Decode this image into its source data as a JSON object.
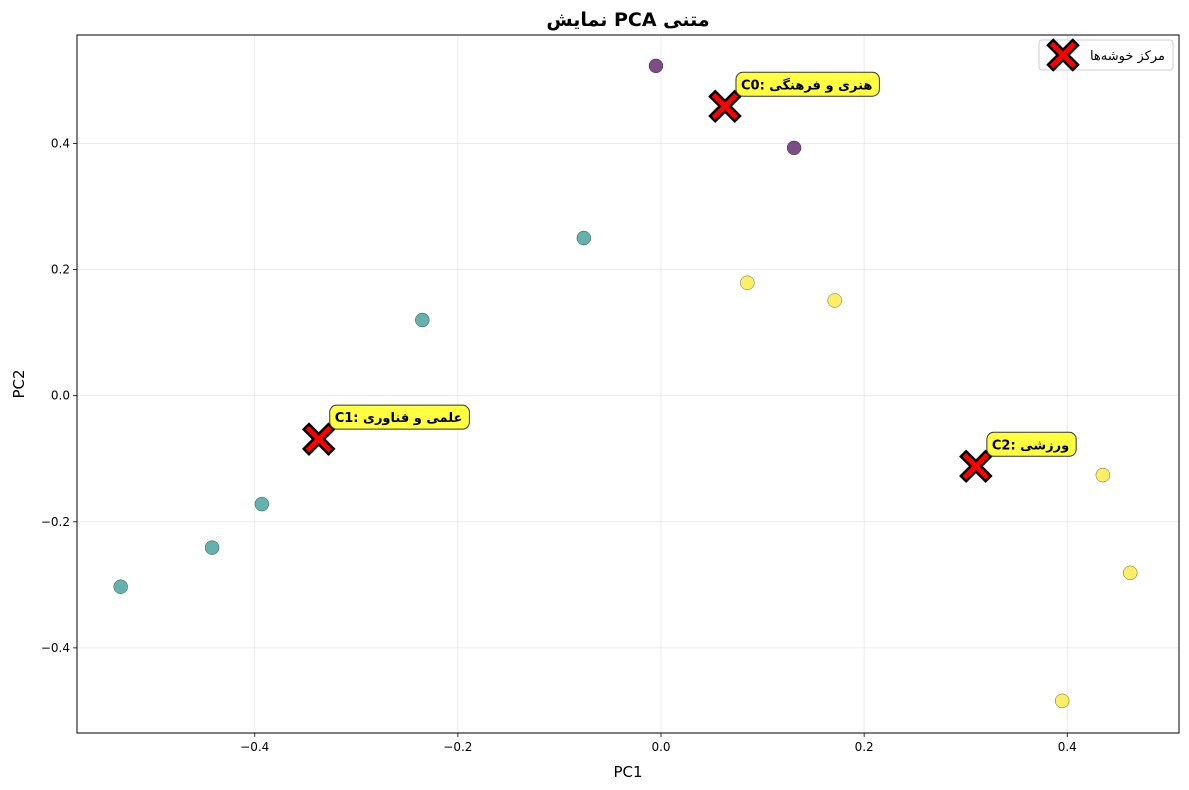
{
  "chart_data": {
    "type": "scatter",
    "title": "نمایش PCA  متنی",
    "xlabel": "PC1",
    "ylabel": "PC2",
    "xlim": [
      -0.575,
      0.51
    ],
    "ylim": [
      -0.535,
      0.572
    ],
    "xticks": [
      -0.4,
      -0.2,
      0.0,
      0.2,
      0.4
    ],
    "xtick_labels": [
      "−0.4",
      "−0.2",
      "0.0",
      "0.2",
      "0.4"
    ],
    "yticks": [
      -0.4,
      -0.2,
      0.0,
      0.2,
      0.4
    ],
    "ytick_labels": [
      "−0.4",
      "−0.2",
      "0.0",
      "0.2",
      "0.4"
    ],
    "grid": true,
    "legend_position": "top-right",
    "colors": {
      "cluster_0": "#440154",
      "cluster_1": "#21918c",
      "cluster_2": "#fde725",
      "centroid": "#ff0000",
      "annotation_bg": "#ffff00"
    },
    "series": [
      {
        "cluster": 0,
        "points": [
          {
            "x": -0.005,
            "y": 0.523
          },
          {
            "x": 0.131,
            "y": 0.393
          }
        ]
      },
      {
        "cluster": 1,
        "points": [
          {
            "x": -0.076,
            "y": 0.25
          },
          {
            "x": -0.235,
            "y": 0.12
          },
          {
            "x": -0.393,
            "y": -0.172
          },
          {
            "x": -0.442,
            "y": -0.241
          },
          {
            "x": -0.532,
            "y": -0.303
          }
        ]
      },
      {
        "cluster": 2,
        "points": [
          {
            "x": 0.085,
            "y": 0.179
          },
          {
            "x": 0.171,
            "y": 0.151
          },
          {
            "x": 0.435,
            "y": -0.126
          },
          {
            "x": 0.462,
            "y": -0.281
          },
          {
            "x": 0.395,
            "y": -0.484
          }
        ]
      }
    ],
    "centroids": [
      {
        "label": "C0: هنری و فرهنگی",
        "x": 0.063,
        "y": 0.459
      },
      {
        "label": "C1: علمی و فناوری",
        "x": -0.337,
        "y": -0.069
      },
      {
        "label": "C2: ورزشی",
        "x": 0.31,
        "y": -0.112
      }
    ],
    "legend": {
      "label": "مرکز خوشه‌ها"
    }
  }
}
